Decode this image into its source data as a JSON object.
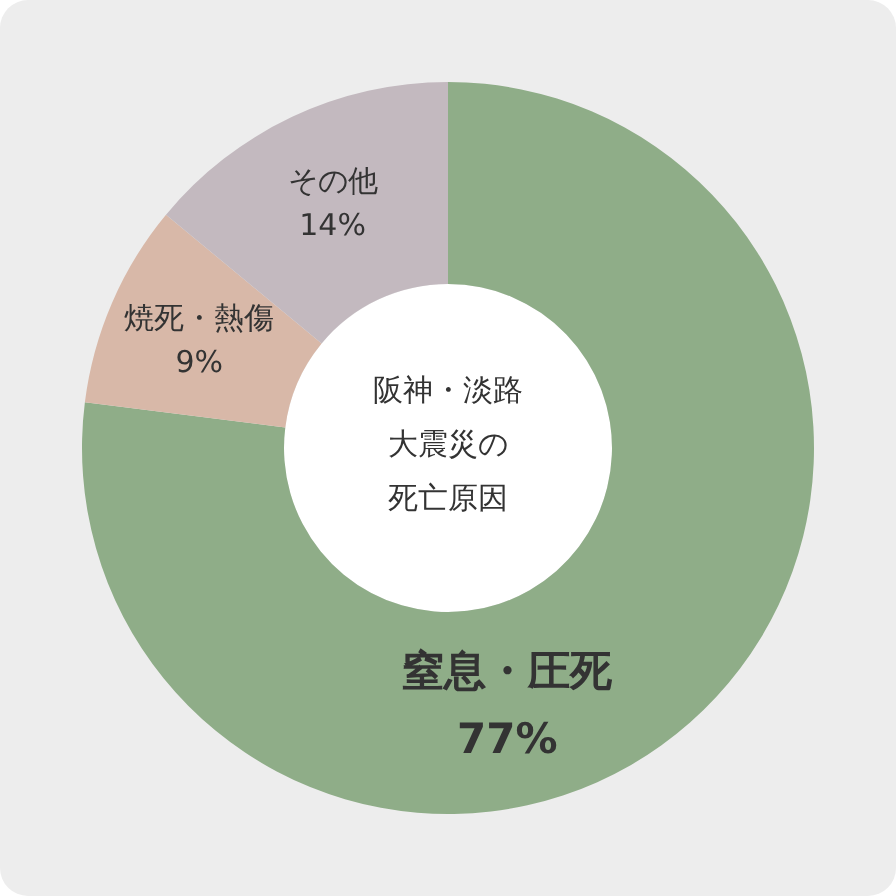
{
  "chart_data": {
    "type": "donut",
    "title": "阪神・淡路大震災の死亡原因",
    "categories": [
      "窒息・圧死",
      "焼死・熱傷",
      "その他"
    ],
    "values": [
      77,
      9,
      14
    ],
    "colors": [
      "#8fad88",
      "#d8b8a8",
      "#c3b9bf"
    ],
    "value_labels": [
      "77%",
      "9%",
      "14%"
    ],
    "legend": false
  }
}
